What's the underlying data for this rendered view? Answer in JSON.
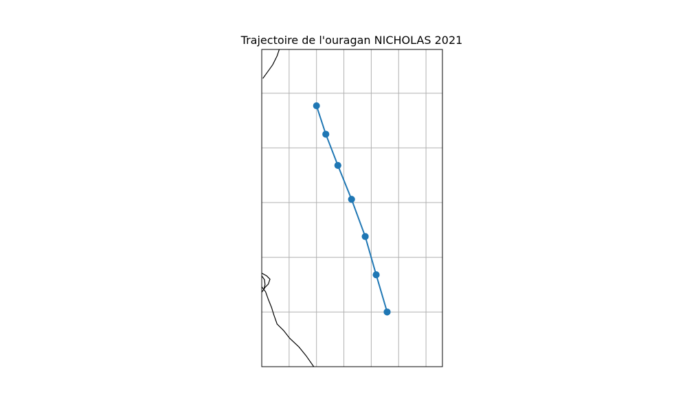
{
  "chart_data": {
    "type": "line",
    "title": "Trajectoire de l'ouragan NICHOLAS 2021",
    "xlim": [
      -96.5,
      -93.2
    ],
    "ylim": [
      26.0,
      31.8
    ],
    "grid": true,
    "series": [
      {
        "color": "#1f77b4",
        "marker": "circle",
        "x": [
          -94.21,
          -94.41,
          -94.61,
          -94.86,
          -95.11,
          -95.33,
          -95.5,
          -95.33,
          -95.11,
          -94.86,
          -94.61,
          -94.41,
          -94.21
        ],
        "y": [
          27.0,
          27.68,
          28.38,
          29.06,
          29.68,
          30.25,
          30.77,
          30.25,
          29.68,
          29.06,
          28.38,
          27.68,
          27.0
        ]
      }
    ],
    "coastlines": [
      [
        [
          -96.18,
          31.8
        ],
        [
          -96.22,
          31.68
        ],
        [
          -96.3,
          31.52
        ],
        [
          -96.4,
          31.38
        ],
        [
          -96.48,
          31.27
        ]
      ],
      [
        [
          -96.5,
          27.71
        ],
        [
          -96.41,
          27.66
        ],
        [
          -96.35,
          27.6
        ],
        [
          -96.38,
          27.51
        ],
        [
          -96.44,
          27.45
        ],
        [
          -96.5,
          27.36
        ]
      ],
      [
        [
          -96.5,
          27.66
        ],
        [
          -96.45,
          27.59
        ],
        [
          -96.44,
          27.5
        ],
        [
          -96.46,
          27.42
        ]
      ],
      [
        [
          -96.5,
          27.46
        ],
        [
          -96.43,
          27.37
        ],
        [
          -96.38,
          27.23
        ],
        [
          -96.32,
          27.08
        ],
        [
          -96.28,
          26.95
        ],
        [
          -96.22,
          26.78
        ],
        [
          -96.1,
          26.66
        ],
        [
          -95.99,
          26.52
        ],
        [
          -95.82,
          26.36
        ],
        [
          -95.69,
          26.2
        ],
        [
          -95.55,
          26.0
        ]
      ]
    ]
  }
}
